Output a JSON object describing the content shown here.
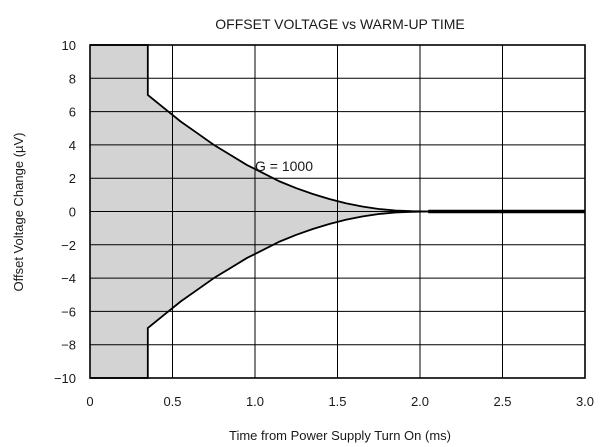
{
  "chart_data": {
    "type": "area",
    "title": "OFFSET VOLTAGE vs WARM-UP TIME",
    "xlabel": "Time from Power Supply Turn On (ms)",
    "ylabel": "Offset Voltage Change (µV)",
    "xlim": [
      0,
      3.0
    ],
    "ylim": [
      -10,
      10
    ],
    "x_ticks": [
      0,
      0.5,
      1.0,
      1.5,
      2.0,
      2.5,
      3.0
    ],
    "x_tick_labels": [
      "0",
      "0.5",
      "1.0",
      "1.5",
      "2.0",
      "2.5",
      "3.0"
    ],
    "y_ticks": [
      10,
      8,
      6,
      4,
      2,
      0,
      -2,
      -4,
      -6,
      -8,
      -10
    ],
    "y_tick_labels": [
      "10",
      "8",
      "6",
      "4",
      "2",
      "0",
      "−2",
      "−4",
      "−6",
      "−8",
      "−10"
    ],
    "grid": true,
    "shaded_fill": "#d3d3d3",
    "curve_color": "#000000",
    "envelope": {
      "x": [
        0,
        0.35,
        0.35,
        0.45,
        0.55,
        0.65,
        0.75,
        0.85,
        0.95,
        1.05,
        1.15,
        1.25,
        1.35,
        1.45,
        1.55,
        1.65,
        1.75,
        1.85,
        1.95,
        2.05,
        3.0
      ],
      "upper": [
        10,
        10,
        7,
        6.2,
        5.4,
        4.7,
        4.0,
        3.4,
        2.8,
        2.3,
        1.8,
        1.4,
        1.05,
        0.75,
        0.5,
        0.3,
        0.15,
        0.06,
        0.02,
        0,
        0
      ],
      "lower": [
        -10,
        -10,
        -7,
        -6.2,
        -5.4,
        -4.7,
        -4.0,
        -3.4,
        -2.8,
        -2.3,
        -1.8,
        -1.4,
        -1.05,
        -0.75,
        -0.5,
        -0.3,
        -0.15,
        -0.06,
        -0.02,
        0,
        0
      ]
    },
    "annotations": [
      {
        "text": "G = 1000",
        "x": 1.0,
        "y": 2.2
      }
    ]
  }
}
